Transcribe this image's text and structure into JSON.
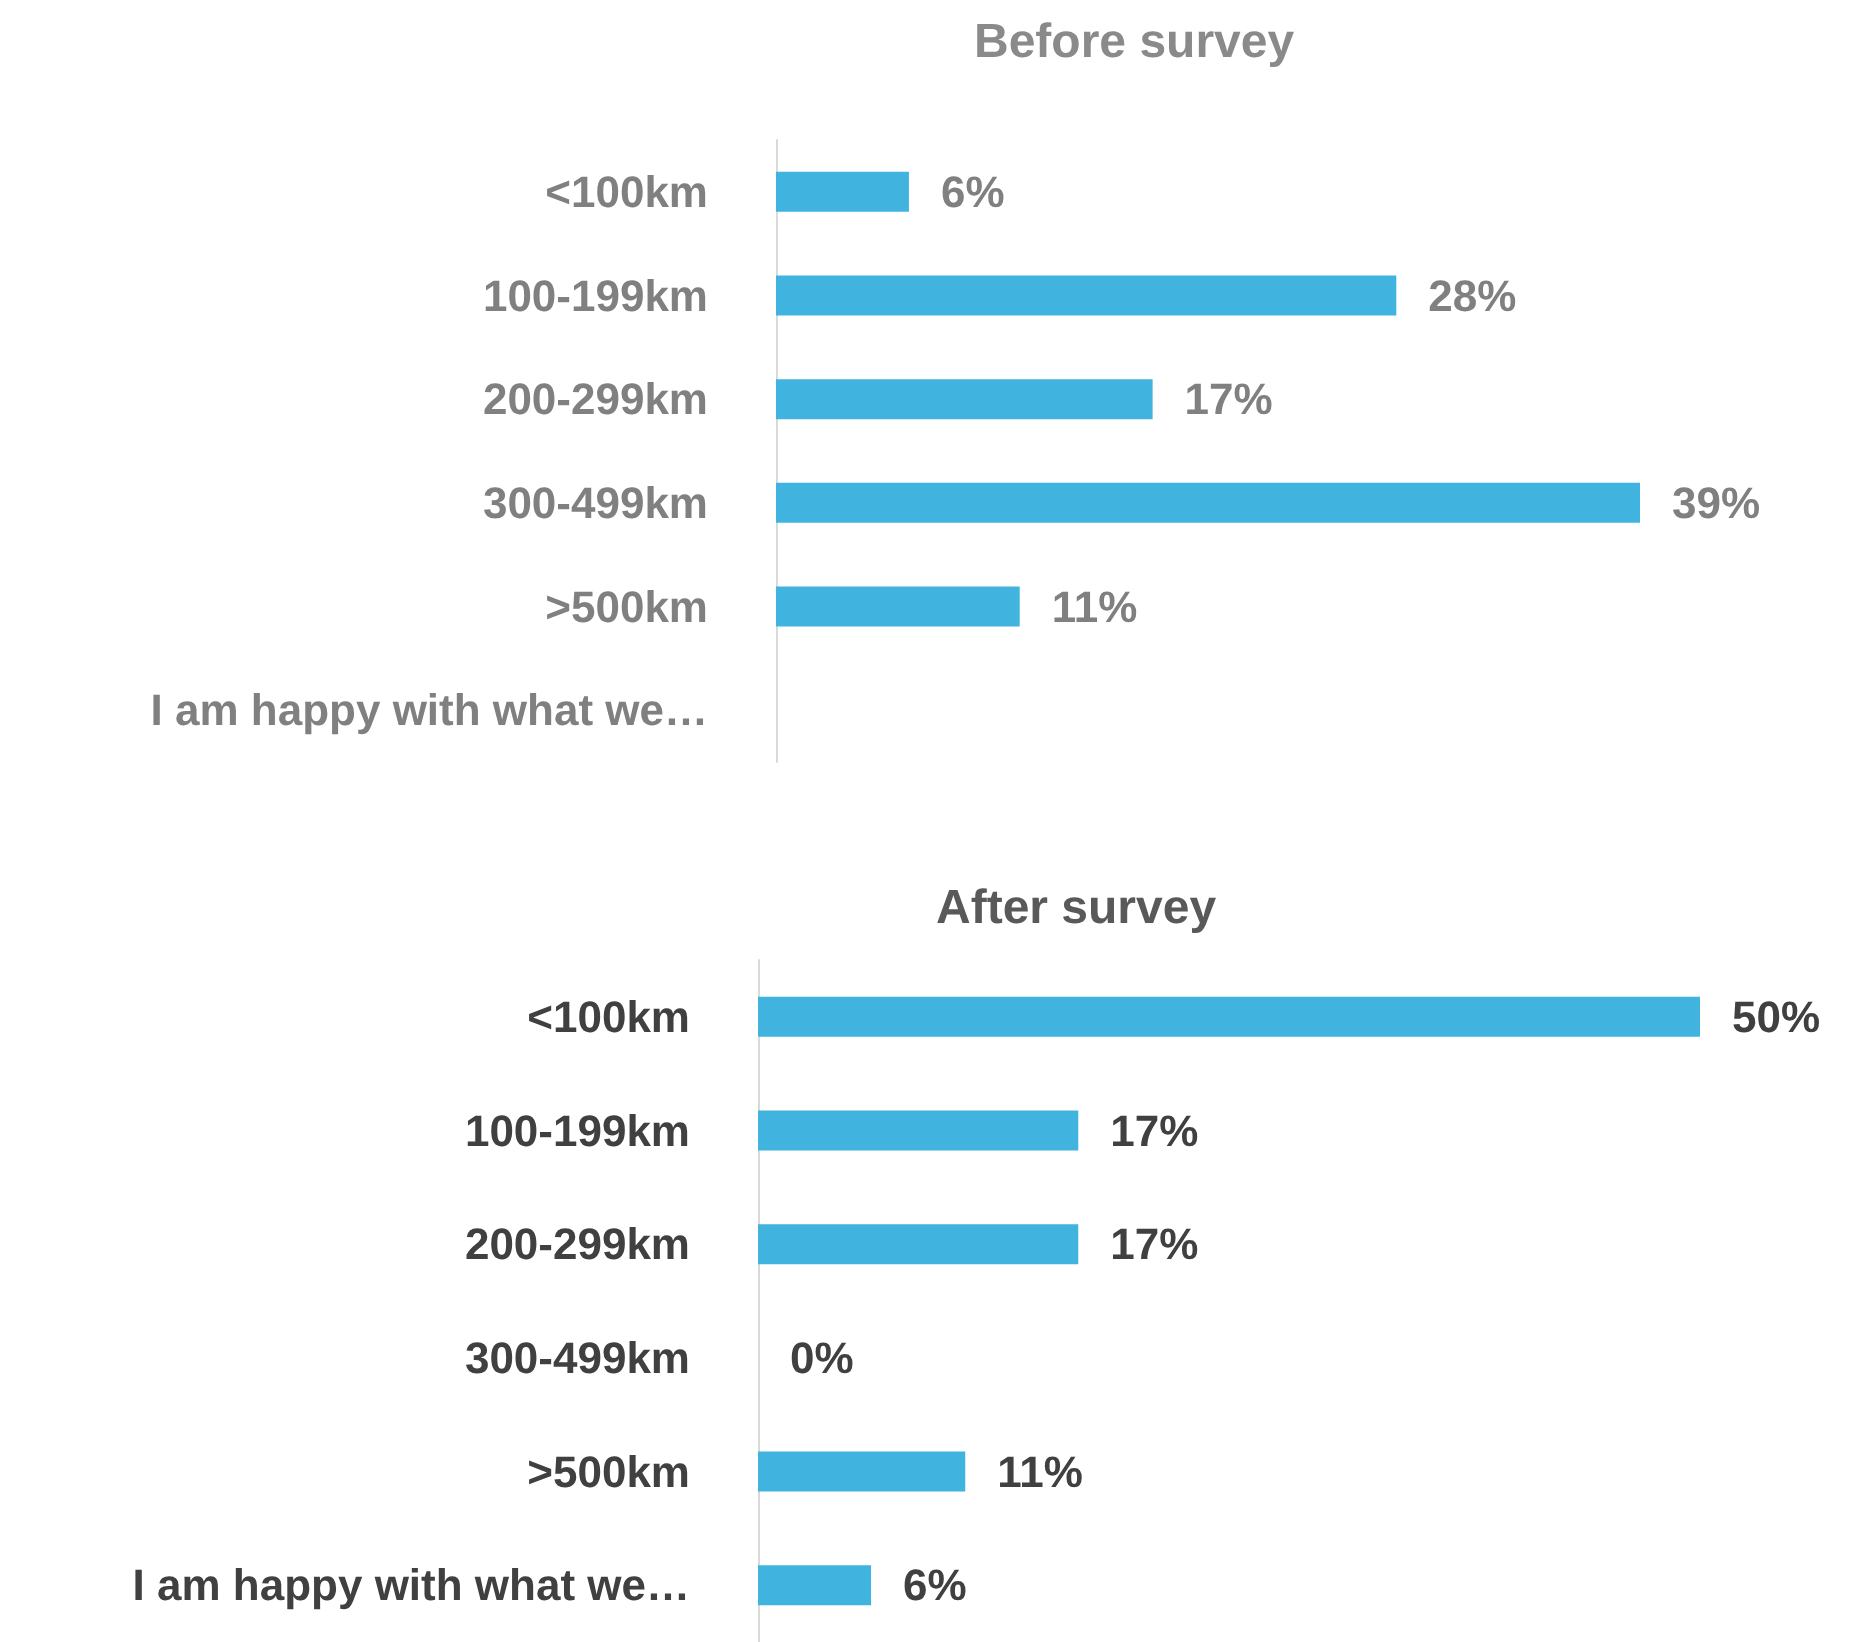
{
  "chart_data": [
    {
      "type": "bar",
      "orientation": "horizontal",
      "title": "Before survey",
      "categories": [
        "<100km",
        "100-199km",
        "200-299km",
        "300-499km",
        ">500km",
        "I am happy with what we…"
      ],
      "values": [
        6,
        28,
        17,
        39,
        11,
        null
      ],
      "value_labels": [
        "6%",
        "28%",
        "17%",
        "39%",
        "11%",
        null
      ],
      "color": "#41b3df",
      "tick_labels": "y"
    },
    {
      "type": "bar",
      "orientation": "horizontal",
      "title": "After survey",
      "categories": [
        "<100km",
        "100-199km",
        "200-299km",
        "300-499km",
        ">500km",
        "I am happy with what we…"
      ],
      "values": [
        50,
        17,
        17,
        0,
        11,
        6
      ],
      "value_labels": [
        "50%",
        "17%",
        "17%",
        "0%",
        "11%",
        "6%"
      ],
      "color": "#41b3df",
      "tick_labels": "y"
    }
  ]
}
